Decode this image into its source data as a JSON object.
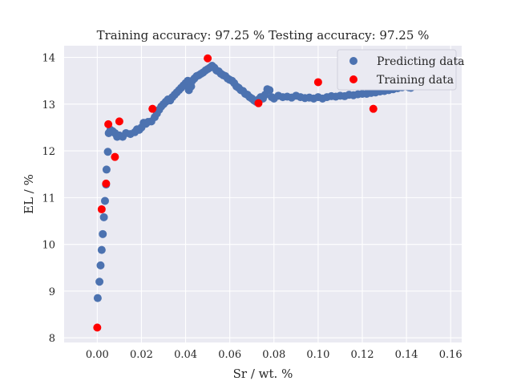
{
  "chart_data": {
    "type": "scatter",
    "title": "Training accuracy: 97.25 %  Testing accuracy: 97.25 %",
    "xlabel": "Sr / wt. %",
    "ylabel": "EL / %",
    "xlim": [
      -0.015,
      0.165
    ],
    "ylim": [
      7.9,
      14.25
    ],
    "grid": true,
    "legend_position": "top-right",
    "x_ticks": [
      0.0,
      0.02,
      0.04,
      0.06,
      0.08,
      0.1,
      0.12,
      0.14,
      0.16
    ],
    "x_tick_labels": [
      "0.00",
      "0.02",
      "0.04",
      "0.06",
      "0.08",
      "0.10",
      "0.12",
      "0.14",
      "0.16"
    ],
    "y_ticks": [
      8,
      9,
      10,
      11,
      12,
      13,
      14
    ],
    "y_tick_labels": [
      "8",
      "9",
      "10",
      "11",
      "12",
      "13",
      "14"
    ],
    "colors": {
      "predicting": "#4c72b0",
      "training": "#ff0000",
      "background": "#eaeaf2",
      "grid": "#ffffff"
    },
    "series": [
      {
        "name": "Predicting data",
        "color": "#4c72b0",
        "points": [
          [
            0.0002,
            8.85
          ],
          [
            0.001,
            9.2
          ],
          [
            0.0015,
            9.55
          ],
          [
            0.002,
            9.88
          ],
          [
            0.0025,
            10.22
          ],
          [
            0.003,
            10.58
          ],
          [
            0.0035,
            10.93
          ],
          [
            0.004,
            11.28
          ],
          [
            0.0042,
            11.6
          ],
          [
            0.0048,
            11.98
          ],
          [
            0.0052,
            12.38
          ],
          [
            0.006,
            12.45
          ],
          [
            0.007,
            12.42
          ],
          [
            0.008,
            12.38
          ],
          [
            0.009,
            12.3
          ],
          [
            0.01,
            12.33
          ],
          [
            0.0115,
            12.3
          ],
          [
            0.013,
            12.38
          ],
          [
            0.015,
            12.36
          ],
          [
            0.017,
            12.4
          ],
          [
            0.018,
            12.46
          ],
          [
            0.019,
            12.45
          ],
          [
            0.02,
            12.5
          ],
          [
            0.021,
            12.6
          ],
          [
            0.022,
            12.58
          ],
          [
            0.023,
            12.62
          ],
          [
            0.0245,
            12.63
          ],
          [
            0.026,
            12.72
          ],
          [
            0.027,
            12.8
          ],
          [
            0.028,
            12.88
          ],
          [
            0.029,
            12.95
          ],
          [
            0.03,
            13.0
          ],
          [
            0.031,
            13.05
          ],
          [
            0.032,
            13.1
          ],
          [
            0.033,
            13.08
          ],
          [
            0.034,
            13.15
          ],
          [
            0.035,
            13.2
          ],
          [
            0.036,
            13.25
          ],
          [
            0.037,
            13.3
          ],
          [
            0.038,
            13.35
          ],
          [
            0.039,
            13.4
          ],
          [
            0.04,
            13.45
          ],
          [
            0.041,
            13.5
          ],
          [
            0.0415,
            13.3
          ],
          [
            0.0425,
            13.38
          ],
          [
            0.043,
            13.5
          ],
          [
            0.044,
            13.55
          ],
          [
            0.045,
            13.6
          ],
          [
            0.046,
            13.62
          ],
          [
            0.047,
            13.65
          ],
          [
            0.048,
            13.68
          ],
          [
            0.049,
            13.72
          ],
          [
            0.05,
            13.75
          ],
          [
            0.051,
            13.78
          ],
          [
            0.052,
            13.82
          ],
          [
            0.053,
            13.78
          ],
          [
            0.054,
            13.72
          ],
          [
            0.055,
            13.7
          ],
          [
            0.056,
            13.65
          ],
          [
            0.057,
            13.62
          ],
          [
            0.058,
            13.6
          ],
          [
            0.059,
            13.55
          ],
          [
            0.06,
            13.52
          ],
          [
            0.061,
            13.5
          ],
          [
            0.062,
            13.45
          ],
          [
            0.063,
            13.38
          ],
          [
            0.064,
            13.35
          ],
          [
            0.065,
            13.3
          ],
          [
            0.066,
            13.28
          ],
          [
            0.067,
            13.22
          ],
          [
            0.068,
            13.2
          ],
          [
            0.069,
            13.15
          ],
          [
            0.07,
            13.12
          ],
          [
            0.071,
            13.08
          ],
          [
            0.072,
            13.05
          ],
          [
            0.073,
            13.1
          ],
          [
            0.074,
            13.15
          ],
          [
            0.075,
            13.12
          ],
          [
            0.076,
            13.2
          ],
          [
            0.077,
            13.32
          ],
          [
            0.078,
            13.3
          ],
          [
            0.079,
            13.15
          ],
          [
            0.08,
            13.12
          ],
          [
            0.082,
            13.18
          ],
          [
            0.084,
            13.15
          ],
          [
            0.086,
            13.16
          ],
          [
            0.088,
            13.14
          ],
          [
            0.09,
            13.18
          ],
          [
            0.092,
            13.15
          ],
          [
            0.094,
            13.13
          ],
          [
            0.096,
            13.14
          ],
          [
            0.098,
            13.12
          ],
          [
            0.1,
            13.15
          ],
          [
            0.102,
            13.12
          ],
          [
            0.104,
            13.15
          ],
          [
            0.106,
            13.17
          ],
          [
            0.108,
            13.16
          ],
          [
            0.11,
            13.18
          ],
          [
            0.112,
            13.17
          ],
          [
            0.114,
            13.2
          ],
          [
            0.116,
            13.19
          ],
          [
            0.118,
            13.21
          ],
          [
            0.12,
            13.22
          ],
          [
            0.122,
            13.22
          ],
          [
            0.124,
            13.24
          ],
          [
            0.126,
            13.25
          ],
          [
            0.128,
            13.27
          ],
          [
            0.13,
            13.28
          ],
          [
            0.132,
            13.3
          ],
          [
            0.134,
            13.32
          ],
          [
            0.136,
            13.34
          ],
          [
            0.138,
            13.36
          ],
          [
            0.14,
            13.38
          ],
          [
            0.141,
            13.36
          ],
          [
            0.142,
            13.35
          ]
        ]
      },
      {
        "name": "Training data",
        "color": "#ff0000",
        "points": [
          [
            0.0,
            8.22
          ],
          [
            0.002,
            10.75
          ],
          [
            0.004,
            11.3
          ],
          [
            0.005,
            12.57
          ],
          [
            0.008,
            11.87
          ],
          [
            0.01,
            12.63
          ],
          [
            0.025,
            12.9
          ],
          [
            0.05,
            13.98
          ],
          [
            0.073,
            13.02
          ],
          [
            0.1,
            13.47
          ],
          [
            0.125,
            12.9
          ]
        ]
      }
    ]
  }
}
